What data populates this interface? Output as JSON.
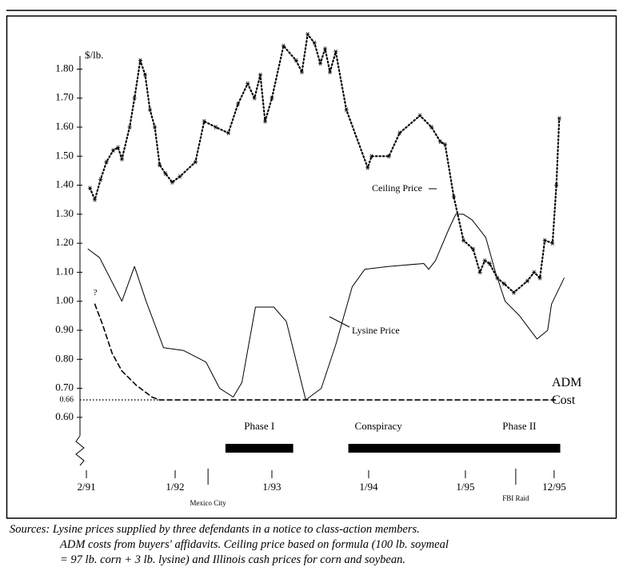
{
  "chart_data": {
    "type": "line",
    "y_axis_label": "$/lb.",
    "xlim": [
      1991.0,
      1996.05
    ],
    "ylim": [
      0.55,
      1.95
    ],
    "xticks": [
      {
        "value": 1991.083,
        "label": "2/91"
      },
      {
        "value": 1992.0,
        "label": "1/92"
      },
      {
        "value": 1993.0,
        "label": "1/93"
      },
      {
        "value": 1994.0,
        "label": "1/94"
      },
      {
        "value": 1995.0,
        "label": "1/95"
      },
      {
        "value": 1995.917,
        "label": "12/95"
      }
    ],
    "yticks": [
      {
        "value": 0.6,
        "label": "0.60"
      },
      {
        "value": 0.7,
        "label": "0.70"
      },
      {
        "value": 0.8,
        "label": "0.80"
      },
      {
        "value": 0.9,
        "label": "0.90"
      },
      {
        "value": 1.0,
        "label": "1.00"
      },
      {
        "value": 1.1,
        "label": "1.10"
      },
      {
        "value": 1.2,
        "label": "1.20"
      },
      {
        "value": 1.3,
        "label": "1.30"
      },
      {
        "value": 1.4,
        "label": "1.40"
      },
      {
        "value": 1.5,
        "label": "1.50"
      },
      {
        "value": 1.6,
        "label": "1.60"
      },
      {
        "value": 1.7,
        "label": "1.70"
      },
      {
        "value": 1.8,
        "label": "1.80"
      }
    ],
    "reference_line": 0.66,
    "series": [
      {
        "name": "Ceiling Price",
        "color": "#000000",
        "style": "dotted",
        "markers": true,
        "x": [
          1991.12,
          1991.17,
          1991.23,
          1991.29,
          1991.36,
          1991.41,
          1991.45,
          1991.53,
          1991.58,
          1991.64,
          1991.69,
          1991.74,
          1991.79,
          1991.84,
          1991.9,
          1991.97,
          1992.05,
          1992.21,
          1992.3,
          1992.42,
          1992.55,
          1992.65,
          1992.75,
          1992.82,
          1992.88,
          1992.93,
          1993.0,
          1993.12,
          1993.25,
          1993.31,
          1993.37,
          1993.44,
          1993.5,
          1993.55,
          1993.6,
          1993.66,
          1993.77,
          1993.99,
          1994.03,
          1994.21,
          1994.32,
          1994.53,
          1994.65,
          1994.74,
          1994.79,
          1994.88,
          1994.98,
          1995.08,
          1995.15,
          1995.2,
          1995.25,
          1995.33,
          1995.4,
          1995.5,
          1995.64,
          1995.71,
          1995.77,
          1995.82,
          1995.9,
          1995.94,
          1995.97
        ],
        "values": [
          1.39,
          1.35,
          1.42,
          1.48,
          1.52,
          1.53,
          1.49,
          1.6,
          1.7,
          1.83,
          1.78,
          1.66,
          1.6,
          1.47,
          1.44,
          1.41,
          1.43,
          1.48,
          1.62,
          1.6,
          1.58,
          1.68,
          1.75,
          1.7,
          1.78,
          1.62,
          1.7,
          1.88,
          1.83,
          1.79,
          1.92,
          1.89,
          1.82,
          1.87,
          1.79,
          1.86,
          1.66,
          1.46,
          1.5,
          1.5,
          1.58,
          1.64,
          1.6,
          1.55,
          1.54,
          1.36,
          1.21,
          1.18,
          1.1,
          1.14,
          1.13,
          1.08,
          1.06,
          1.03,
          1.07,
          1.1,
          1.08,
          1.21,
          1.2,
          1.4,
          1.63
        ]
      },
      {
        "name": "Lysine Price",
        "color": "#000000",
        "style": "solid",
        "markers": false,
        "x": [
          1991.1,
          1991.22,
          1991.45,
          1991.58,
          1991.7,
          1991.88,
          1992.09,
          1992.32,
          1992.46,
          1992.6,
          1992.69,
          1992.83,
          1993.02,
          1993.15,
          1993.35,
          1993.51,
          1993.66,
          1993.83,
          1993.96,
          1994.2,
          1994.57,
          1994.62,
          1994.69,
          1994.83,
          1994.9,
          1994.98,
          1995.07,
          1995.21,
          1995.31,
          1995.41,
          1995.56,
          1995.74,
          1995.85,
          1995.89,
          1996.02
        ],
        "values": [
          1.18,
          1.15,
          1.0,
          1.12,
          1.0,
          0.84,
          0.83,
          0.79,
          0.7,
          0.67,
          0.72,
          0.98,
          0.98,
          0.93,
          0.66,
          0.7,
          0.85,
          1.05,
          1.11,
          1.12,
          1.13,
          1.11,
          1.14,
          1.25,
          1.3,
          1.3,
          1.28,
          1.22,
          1.1,
          1.0,
          0.95,
          0.87,
          0.9,
          0.99,
          1.08
        ]
      },
      {
        "name": "ADM Cost",
        "color": "#000000",
        "style": "dashed",
        "markers": false,
        "x": [
          1991.17,
          1991.25,
          1991.35,
          1991.45,
          1991.6,
          1991.76,
          1991.84,
          1995.93
        ],
        "values": [
          0.99,
          0.92,
          0.82,
          0.76,
          0.71,
          0.67,
          0.66,
          0.66
        ]
      }
    ],
    "annotations": [
      {
        "text": "?"
      },
      {
        "text": "Phase II"
      }
    ],
    "periods": [
      {
        "label": "Phase I",
        "start": 1992.52,
        "end": 1993.22
      },
      {
        "label": "Conspiracy",
        "start": 1993.79,
        "end": 1995.98
      }
    ],
    "events": [
      {
        "label": "Mexico City",
        "x": 1992.34
      },
      {
        "label": "FBI Raid",
        "x": 1995.52
      }
    ],
    "sources": [
      "Sources: Lysine prices supplied by three defendants in a notice to class-action members.",
      "ADM costs from buyers' affidavits. Ceiling price based on formula (100 lb. soymeal",
      "= 97 lb. corn + 3 lb. lysine) and Illinois cash prices for corn and soybean."
    ]
  }
}
